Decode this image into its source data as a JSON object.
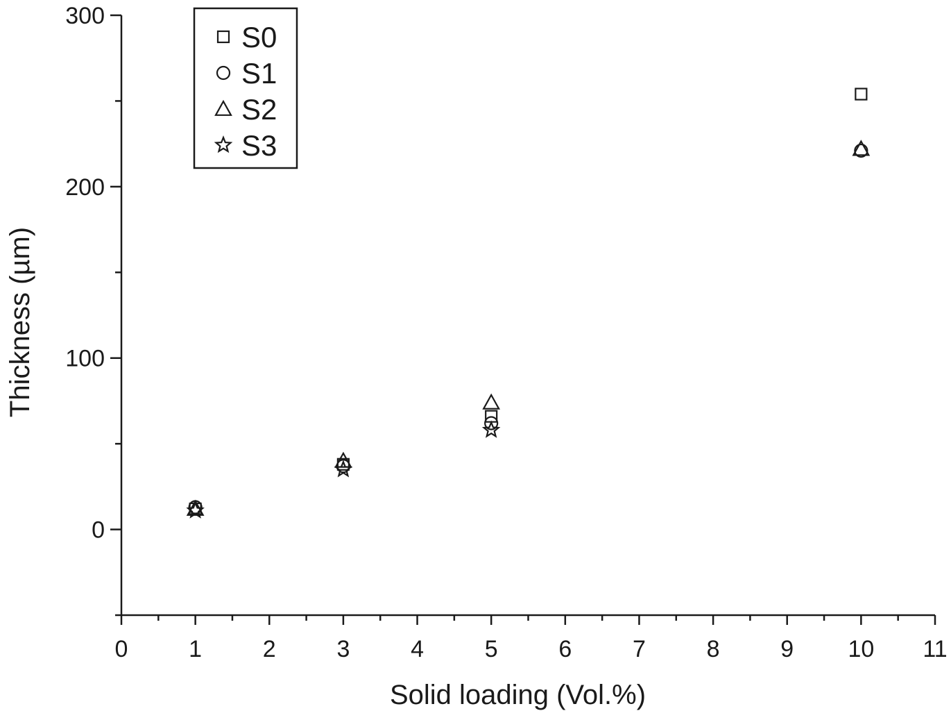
{
  "chart_data": {
    "type": "scatter",
    "title": "",
    "xlabel": "Solid loading (Vol.%)",
    "ylabel": "Thickness (µm)",
    "xlim": [
      0,
      11
    ],
    "ylim": [
      -50,
      300
    ],
    "x_ticks": [
      0,
      1,
      2,
      3,
      4,
      5,
      6,
      7,
      8,
      9,
      10,
      11
    ],
    "y_ticks": [
      0,
      100,
      200,
      300
    ],
    "grid": false,
    "legend_position": "top-left",
    "series": [
      {
        "name": "S0",
        "marker": "square",
        "x": [
          1,
          3,
          5,
          10
        ],
        "y": [
          12,
          38,
          66,
          254
        ]
      },
      {
        "name": "S1",
        "marker": "circle",
        "x": [
          1,
          3,
          5,
          10
        ],
        "y": [
          13,
          37,
          62,
          221
        ]
      },
      {
        "name": "S2",
        "marker": "triangle",
        "x": [
          1,
          3,
          5,
          10
        ],
        "y": [
          12,
          40,
          74,
          222
        ]
      },
      {
        "name": "S3",
        "marker": "star",
        "x": [
          1,
          3,
          5
        ],
        "y": [
          11,
          35,
          58
        ]
      }
    ]
  }
}
